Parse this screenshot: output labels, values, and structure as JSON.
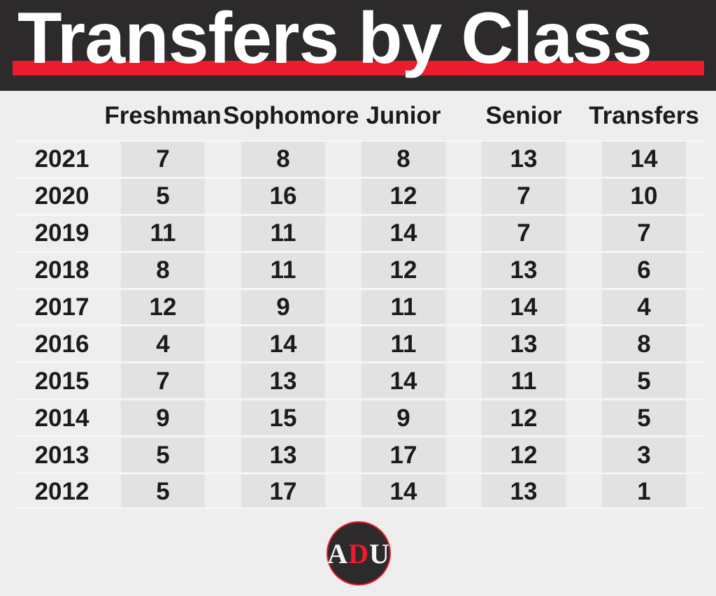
{
  "chart_data": {
    "type": "table",
    "title": "Transfers by Class",
    "columns": [
      "Freshman",
      "Sophomore",
      "Junior",
      "Senior",
      "Transfers"
    ],
    "rows": [
      {
        "year": "2021",
        "values": [
          "7",
          "8",
          "8",
          "13",
          "14"
        ]
      },
      {
        "year": "2020",
        "values": [
          "5",
          "16",
          "12",
          "7",
          "10"
        ]
      },
      {
        "year": "2019",
        "values": [
          "11",
          "11",
          "14",
          "7",
          "7"
        ]
      },
      {
        "year": "2018",
        "values": [
          "8",
          "11",
          "12",
          "13",
          "6"
        ]
      },
      {
        "year": "2017",
        "values": [
          "12",
          "9",
          "11",
          "14",
          "4"
        ]
      },
      {
        "year": "2016",
        "values": [
          "4",
          "14",
          "11",
          "13",
          "8"
        ]
      },
      {
        "year": "2015",
        "values": [
          "7",
          "13",
          "14",
          "11",
          "5"
        ]
      },
      {
        "year": "2014",
        "values": [
          "9",
          "15",
          "9",
          "12",
          "5"
        ]
      },
      {
        "year": "2013",
        "values": [
          "5",
          "13",
          "17",
          "12",
          "3"
        ]
      },
      {
        "year": "2012",
        "values": [
          "5",
          "17",
          "14",
          "13",
          "1"
        ]
      }
    ],
    "layout": {
      "legend": "none",
      "grid": "row-separators and shaded column stripes",
      "header_text_color": "#ec1b2d"
    }
  },
  "footer": {
    "logo": {
      "letters": [
        "A",
        "D",
        "U"
      ]
    }
  },
  "colors": {
    "accent_red": "#ec1b2d",
    "header_dark": "#2d2a2b",
    "background": "#efeeee",
    "column_stripe": "#e3e2e2",
    "row_separator": "#f6f5f5",
    "value_text": "#1e1a1b",
    "title_text": "#ffffff"
  }
}
